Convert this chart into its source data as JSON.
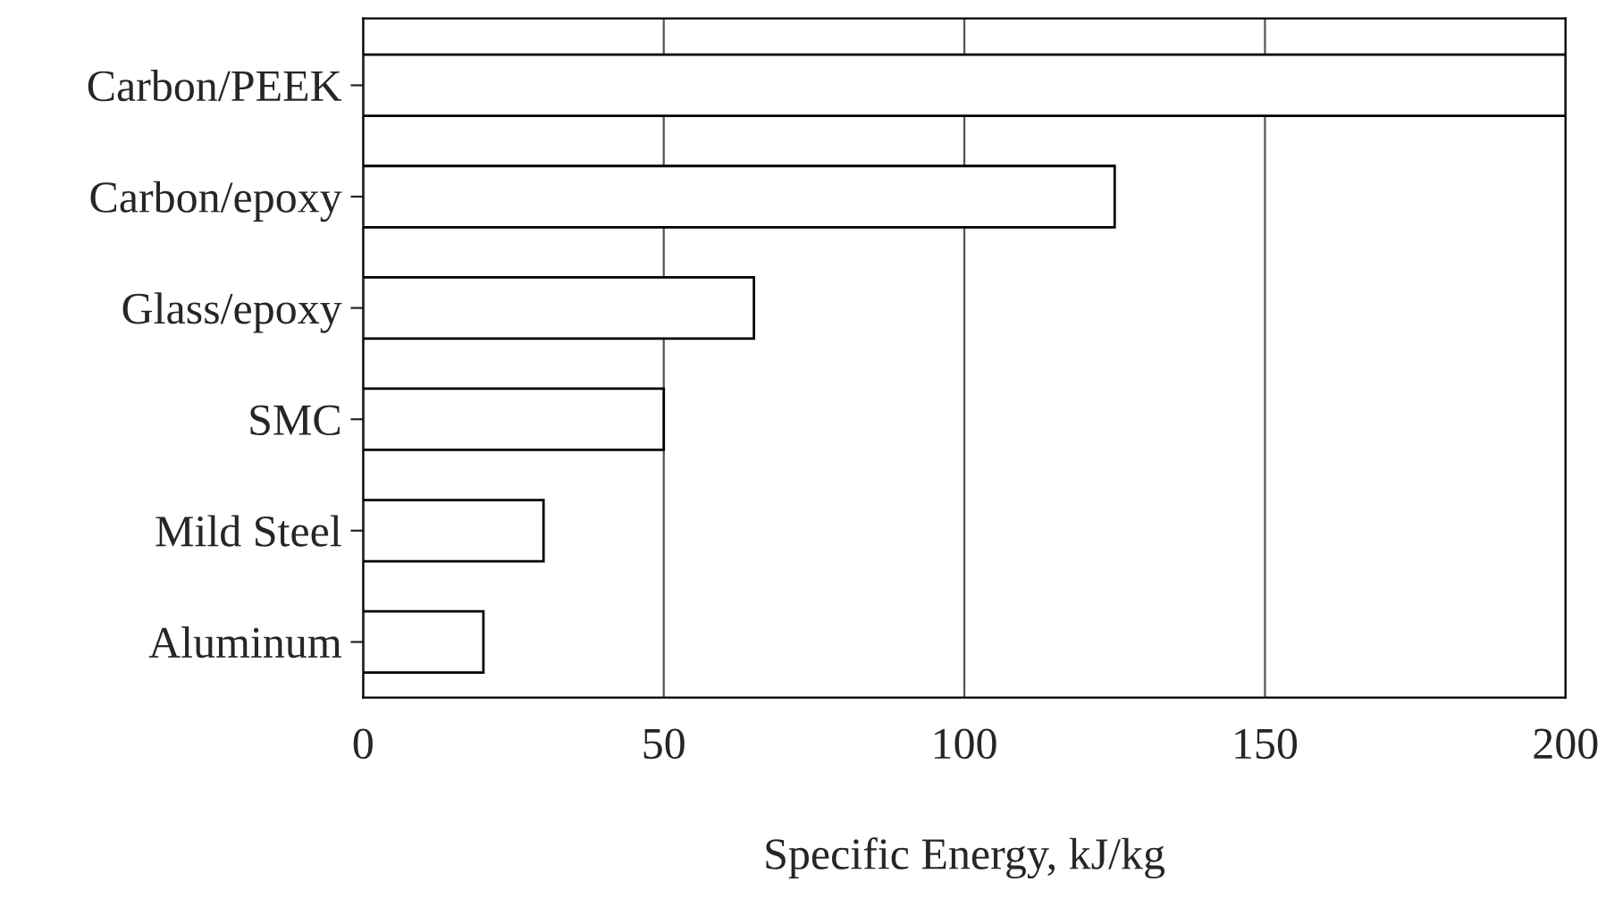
{
  "chart_data": {
    "type": "bar",
    "orientation": "horizontal",
    "xlabel": "Specific Energy, kJ/kg",
    "categories": [
      "Carbon/PEEK",
      "Carbon/epoxy",
      "Glass/epoxy",
      "SMC",
      "Mild Steel",
      "Aluminum"
    ],
    "values": [
      200,
      125,
      65,
      50,
      30,
      20
    ],
    "color": "#ffffff",
    "xlim": [
      0,
      200
    ],
    "xticks": [
      0,
      50,
      100,
      150,
      200
    ],
    "grid": "x"
  }
}
